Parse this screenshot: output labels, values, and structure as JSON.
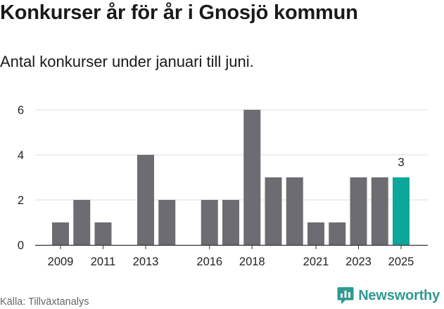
{
  "header": {
    "title": "Konkurser år för år i Gnosjö kommun",
    "subtitle": "Antal konkurser under januari till juni."
  },
  "footer": {
    "source": "Källa: Tillväxtanalys",
    "brand": "Newsworthy",
    "brand_icon": "newsworthy-logo-icon"
  },
  "colors": {
    "bar": "#6d6c72",
    "highlight": "#0da69a",
    "grid": "#dddddd",
    "axis": "#333333",
    "brand": "#2f9a91"
  },
  "chart_data": {
    "type": "bar",
    "title": "Konkurser år för år i Gnosjö kommun",
    "subtitle": "Antal konkurser under januari till juni.",
    "x": [
      2009,
      2010,
      2011,
      2012,
      2013,
      2014,
      2015,
      2016,
      2017,
      2018,
      2019,
      2020,
      2021,
      2022,
      2023,
      2024,
      2025
    ],
    "values": [
      1,
      2,
      1,
      0,
      4,
      2,
      0,
      2,
      2,
      6,
      3,
      3,
      1,
      1,
      3,
      3,
      3
    ],
    "x_tick_labels": [
      "2009",
      "2011",
      "2013",
      "2016",
      "2018",
      "2021",
      "2023",
      "2025"
    ],
    "y_ticks": [
      0,
      2,
      4,
      6
    ],
    "ylim": [
      0,
      6
    ],
    "highlight": {
      "x": 2025,
      "label": "3"
    },
    "grid": true,
    "xlabel": "",
    "ylabel": ""
  }
}
